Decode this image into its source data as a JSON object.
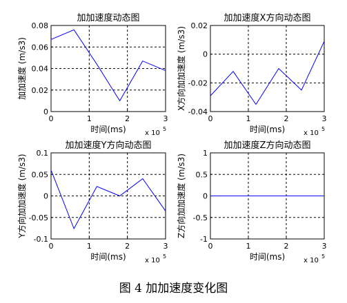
{
  "caption": "图 4  加加速度变化图",
  "chart_data": [
    {
      "type": "line",
      "title": "加加速度动态图",
      "xlabel": "时间(ms)",
      "ylabel": "加加速度 (m/s3)",
      "x_multiplier": "x 10",
      "x_multiplier_exp": "5",
      "xlim": [
        0,
        3
      ],
      "ylim": [
        0,
        0.08
      ],
      "xticks": [
        "0",
        "1",
        "2",
        "3"
      ],
      "yticks": [
        "0",
        "0.02",
        "0.04",
        "0.06",
        "0.08"
      ],
      "grid": true,
      "color": "#0000ff",
      "x": [
        0,
        0.6,
        1.2,
        1.8,
        2.4,
        3.0
      ],
      "y": [
        0.067,
        0.076,
        0.044,
        0.01,
        0.047,
        0.038
      ]
    },
    {
      "type": "line",
      "title": "加加速度X方向动态图",
      "xlabel": "时间(ms)",
      "ylabel": "X方向加加速度 (m/s3)",
      "x_multiplier": "x 10",
      "x_multiplier_exp": "5",
      "xlim": [
        0,
        3
      ],
      "ylim": [
        -0.04,
        0.02
      ],
      "xticks": [
        "0",
        "1",
        "2",
        "3"
      ],
      "yticks": [
        "-0.04",
        "-0.02",
        "0",
        "0.02"
      ],
      "grid": true,
      "color": "#0000ff",
      "x": [
        0,
        0.6,
        1.2,
        1.8,
        2.4,
        3.0
      ],
      "y": [
        -0.029,
        -0.012,
        -0.035,
        -0.01,
        -0.025,
        0.009
      ]
    },
    {
      "type": "line",
      "title": "加加速度Y方向动态图",
      "xlabel": "时间(ms)",
      "ylabel": "Y方向加加速度 (m/s3)",
      "x_multiplier": "x 10",
      "x_multiplier_exp": "5",
      "xlim": [
        0,
        3
      ],
      "ylim": [
        -0.1,
        0.1
      ],
      "xticks": [
        "0",
        "1",
        "2",
        "3"
      ],
      "yticks": [
        "-0.1",
        "-0.05",
        "0",
        "0.05",
        "0.1"
      ],
      "grid": true,
      "color": "#0000ff",
      "x": [
        0,
        0.6,
        1.2,
        1.8,
        2.4,
        3.0
      ],
      "y": [
        0.06,
        -0.076,
        0.022,
        0.0,
        0.04,
        -0.035
      ]
    },
    {
      "type": "line",
      "title": "加加速度Z方向动态图",
      "xlabel": "时间(ms)",
      "ylabel": "Z方向加加速度 (m/s3)",
      "x_multiplier": "x 10",
      "x_multiplier_exp": "5",
      "xlim": [
        0,
        3
      ],
      "ylim": [
        -1,
        1
      ],
      "xticks": [
        "0",
        "1",
        "2",
        "3"
      ],
      "yticks": [
        "-1",
        "-0.5",
        "0",
        "0.5",
        "1"
      ],
      "grid": true,
      "color": "#0000ff",
      "x": [
        0,
        0.6,
        1.2,
        1.8,
        2.4,
        3.0
      ],
      "y": [
        0,
        0,
        0,
        0,
        0,
        0
      ]
    }
  ]
}
